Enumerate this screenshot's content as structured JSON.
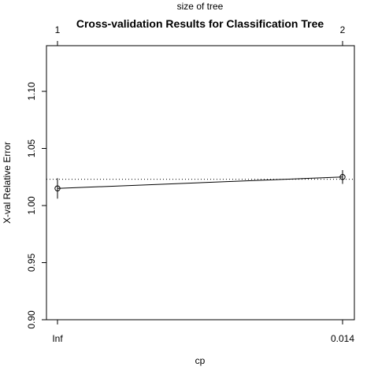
{
  "chart_data": {
    "type": "line",
    "title": "Cross-validation Results for Classification Tree",
    "xlabel": "cp",
    "ylabel": "X-val Relative Error",
    "top_axis_label": "size of tree",
    "x_categories": [
      "Inf",
      "0.014"
    ],
    "top_tick_labels": [
      "1",
      "2"
    ],
    "y_ticks": [
      "0.90",
      "0.95",
      "1.00",
      "1.05",
      "1.10"
    ],
    "ylim": [
      0.9,
      1.14
    ],
    "series": [
      {
        "values": [
          1.015,
          1.025
        ],
        "errors": [
          0.009,
          0.006
        ]
      }
    ],
    "reference_line": 1.023,
    "grid": false
  }
}
